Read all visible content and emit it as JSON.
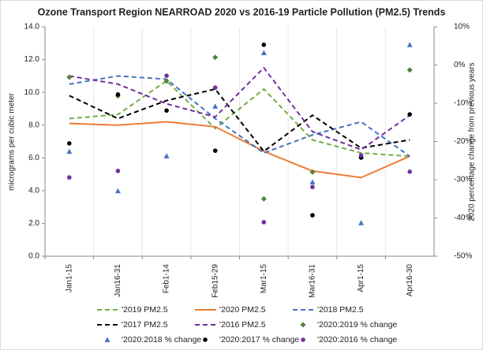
{
  "chart_data": {
    "type": "combo",
    "title": "Ozone Transport Region NEARROAD 2020 vs 2016-19 Particle Pollution (PM2.5) Trends",
    "y_label": "micrograms per cubic meter",
    "y2_label": "2020 percentage change from previous years",
    "categories": [
      "Jan1-15",
      "Jan16-31",
      "Feb1-14",
      "Feb15-29",
      "Mar1-15",
      "Mar16-31",
      "Apr1-15",
      "Apr16-30"
    ],
    "ylim": [
      0,
      14
    ],
    "yticks": [
      {
        "value": 0,
        "label": "0.0"
      },
      {
        "value": 2,
        "label": "2.0"
      },
      {
        "value": 4,
        "label": "4.0"
      },
      {
        "value": 6,
        "label": "6.0"
      },
      {
        "value": 8,
        "label": "8.0"
      },
      {
        "value": 10,
        "label": "10.0"
      },
      {
        "value": 12,
        "label": "12.0"
      },
      {
        "value": 14,
        "label": "14.0"
      }
    ],
    "y2lim": [
      -50,
      10
    ],
    "y2ticks": [
      {
        "value": -50,
        "label": "-50%"
      },
      {
        "value": -40,
        "label": "-40%"
      },
      {
        "value": -30,
        "label": "-30%"
      },
      {
        "value": -20,
        "label": "-20%"
      },
      {
        "value": -10,
        "label": "-10%"
      },
      {
        "value": 0,
        "label": "0%"
      },
      {
        "value": 10,
        "label": "10%"
      }
    ],
    "series": [
      {
        "name": "'2019 PM2.5",
        "type": "line",
        "dash": true,
        "color": "#70ad47",
        "values": [
          8.4,
          8.65,
          10.7,
          7.8,
          10.2,
          7.1,
          6.3,
          6.1
        ]
      },
      {
        "name": "'2020 PM2.5",
        "type": "line",
        "dash": false,
        "color": "#ed7d31",
        "values": [
          8.1,
          8.0,
          8.2,
          7.9,
          6.4,
          5.2,
          4.8,
          6.1
        ]
      },
      {
        "name": "'2018 PM2.5",
        "type": "line",
        "dash": true,
        "color": "#4472c4",
        "values": [
          10.5,
          11.0,
          10.8,
          8.4,
          6.3,
          7.4,
          8.2,
          6.1
        ]
      },
      {
        "name": "'2017 PM2.5",
        "type": "line",
        "dash": true,
        "color": "#000000",
        "values": [
          9.8,
          8.4,
          9.5,
          10.2,
          6.4,
          8.6,
          6.6,
          7.1
        ]
      },
      {
        "name": "'2016 PM2.5",
        "type": "line",
        "dash": true,
        "color": "#7030a0",
        "values": [
          11.0,
          10.5,
          9.3,
          8.5,
          11.5,
          7.6,
          6.5,
          8.6
        ]
      },
      {
        "name": "'2020:2019 % change",
        "type": "scatter",
        "marker": "diamond",
        "axis": "y2",
        "color": "#548235",
        "values": [
          -3.2,
          -8.1,
          -4.2,
          2.0,
          -35,
          -28,
          -24.2,
          -1.3
        ]
      },
      {
        "name": "'2020:2018 % change",
        "type": "scatter",
        "marker": "triangle",
        "axis": "y2",
        "color": "#4472c4",
        "values": [
          -22.6,
          -32.9,
          -23.8,
          -10.8,
          3.2,
          -30.6,
          -41.3,
          5.3
        ]
      },
      {
        "name": "'2020:2017 % change",
        "type": "scatter",
        "marker": "circle",
        "axis": "y2",
        "color": "#000000",
        "values": [
          -20.5,
          -7.7,
          -11.9,
          -22.4,
          5.3,
          -39.3,
          -24.2,
          -12.9
        ]
      },
      {
        "name": "'2020:2016 % change",
        "type": "scatter",
        "marker": "circle",
        "axis": "y2",
        "color": "#7030a0",
        "values": [
          -29.4,
          -27.7,
          -2.8,
          -5.9,
          -41.1,
          -31.9,
          -23.6,
          -27.9
        ]
      }
    ]
  }
}
